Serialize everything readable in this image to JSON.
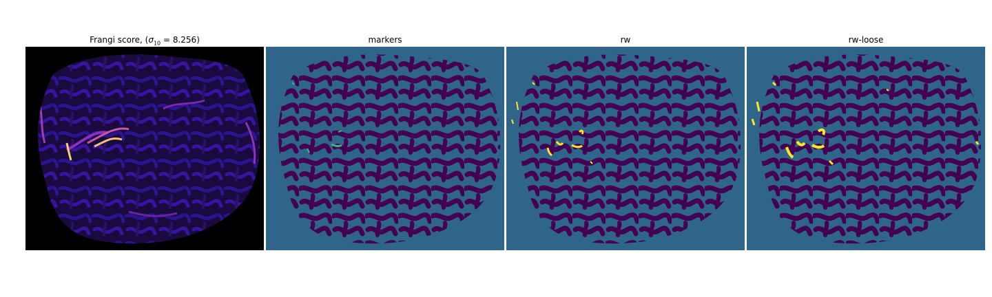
{
  "panels": [
    {
      "title_prefix": "Frangi score, (",
      "title_symbol": "σ",
      "title_sub": "10",
      "title_suffix": " = 8.256)",
      "colormap": "magma"
    },
    {
      "title": "markers",
      "colormap": "viridis"
    },
    {
      "title": "rw",
      "colormap": "viridis"
    },
    {
      "title": "rw-loose",
      "colormap": "viridis"
    }
  ],
  "colors": {
    "frangi_background": "#000000",
    "frangi_low": "#2a1264",
    "frangi_mid": "#7d2bb0",
    "frangi_high": "#f7c76e",
    "label_background": "#2f6589",
    "label_vessel": "#440154",
    "label_marker": "#3fb87a",
    "label_highlight": "#fde725"
  }
}
